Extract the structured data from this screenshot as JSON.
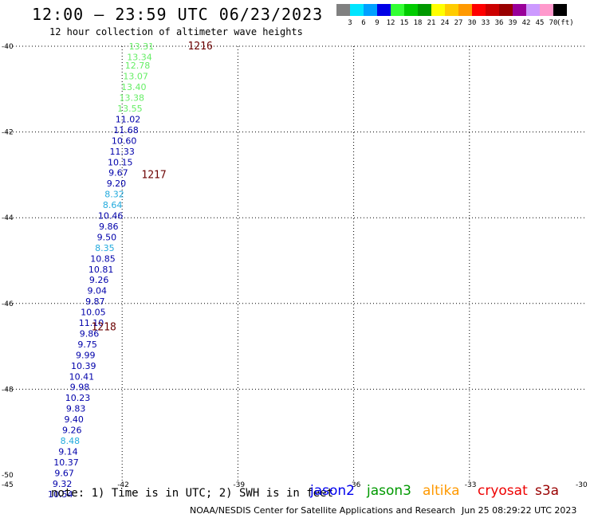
{
  "header": {
    "title": "12:00 – 23:59 UTC 06/23/2023",
    "subtitle": "12 hour collection of altimeter wave heights"
  },
  "color_scale": {
    "labels": [
      "3",
      "6",
      "9",
      "12",
      "15",
      "18",
      "21",
      "24",
      "27",
      "30",
      "33",
      "36",
      "39",
      "42",
      "45",
      "70"
    ],
    "unit": "(ft)",
    "colors": [
      "#808080",
      "#00e5ff",
      "#00a0ff",
      "#0000e6",
      "#33ff33",
      "#00cc00",
      "#009900",
      "#ffff00",
      "#ffcc00",
      "#ff9900",
      "#ff0000",
      "#cc0000",
      "#990000",
      "#990099",
      "#cc99ff",
      "#ff99cc",
      "#000000"
    ]
  },
  "map": {
    "lat_labels": [
      "-40",
      "-42",
      "-44",
      "-46",
      "-48",
      "-50"
    ],
    "lon_labels": [
      "-45",
      "-42",
      "-39",
      "-36",
      "-33",
      "-30"
    ]
  },
  "chart_data": {
    "type": "scatter",
    "x_range": [
      -45,
      -30
    ],
    "y_range": [
      -50,
      -40
    ],
    "passes": [
      {
        "label": "1216",
        "lon": -40.3,
        "lat": -40.0
      },
      {
        "label": "1217",
        "lon": -41.5,
        "lat": -43.0
      },
      {
        "label": "1218",
        "lon": -42.8,
        "lat": -46.55
      }
    ],
    "points": [
      {
        "lon": -41.5,
        "lat": -40.0,
        "v": "13.31",
        "c": "#66ee66"
      },
      {
        "lon": -41.55,
        "lat": -40.25,
        "v": "13.34",
        "c": "#66ee66"
      },
      {
        "lon": -41.6,
        "lat": -40.45,
        "v": "12.78",
        "c": "#66ee66"
      },
      {
        "lon": -41.65,
        "lat": -40.7,
        "v": "13.07",
        "c": "#66ee66"
      },
      {
        "lon": -41.7,
        "lat": -40.95,
        "v": "13.40",
        "c": "#66ee66"
      },
      {
        "lon": -41.75,
        "lat": -41.2,
        "v": "13.38",
        "c": "#66ee66"
      },
      {
        "lon": -41.8,
        "lat": -41.45,
        "v": "13.55",
        "c": "#66ee66"
      },
      {
        "lon": -41.85,
        "lat": -41.7,
        "v": "11.02",
        "c": "#0000aa"
      },
      {
        "lon": -41.9,
        "lat": -41.95,
        "v": "11.68",
        "c": "#0000aa"
      },
      {
        "lon": -41.95,
        "lat": -42.2,
        "v": "10.60",
        "c": "#0000aa"
      },
      {
        "lon": -42.0,
        "lat": -42.45,
        "v": "11.33",
        "c": "#0000aa"
      },
      {
        "lon": -42.05,
        "lat": -42.7,
        "v": "10.15",
        "c": "#0000aa"
      },
      {
        "lon": -42.1,
        "lat": -42.95,
        "v": "9.67",
        "c": "#0000aa"
      },
      {
        "lon": -42.15,
        "lat": -43.2,
        "v": "9.20",
        "c": "#0000aa"
      },
      {
        "lon": -42.2,
        "lat": -43.45,
        "v": "8.32",
        "c": "#22aadd"
      },
      {
        "lon": -42.25,
        "lat": -43.7,
        "v": "8.64",
        "c": "#22aadd"
      },
      {
        "lon": -42.3,
        "lat": -43.95,
        "v": "10.46",
        "c": "#0000aa"
      },
      {
        "lon": -42.35,
        "lat": -44.2,
        "v": "9.86",
        "c": "#0000aa"
      },
      {
        "lon": -42.4,
        "lat": -44.45,
        "v": "9.50",
        "c": "#0000aa"
      },
      {
        "lon": -42.45,
        "lat": -44.7,
        "v": "8.35",
        "c": "#22aadd"
      },
      {
        "lon": -42.5,
        "lat": -44.95,
        "v": "10.85",
        "c": "#0000aa"
      },
      {
        "lon": -42.55,
        "lat": -45.2,
        "v": "10.81",
        "c": "#0000aa"
      },
      {
        "lon": -42.6,
        "lat": -45.45,
        "v": "9.26",
        "c": "#0000aa"
      },
      {
        "lon": -42.65,
        "lat": -45.7,
        "v": "9.04",
        "c": "#0000aa"
      },
      {
        "lon": -42.7,
        "lat": -45.95,
        "v": "9.87",
        "c": "#0000aa"
      },
      {
        "lon": -42.75,
        "lat": -46.2,
        "v": "10.05",
        "c": "#0000aa"
      },
      {
        "lon": -42.8,
        "lat": -46.45,
        "v": "11.10",
        "c": "#0000aa"
      },
      {
        "lon": -42.85,
        "lat": -46.7,
        "v": "9.86",
        "c": "#0000aa"
      },
      {
        "lon": -42.9,
        "lat": -46.95,
        "v": "9.75",
        "c": "#0000aa"
      },
      {
        "lon": -42.95,
        "lat": -47.2,
        "v": "9.99",
        "c": "#0000aa"
      },
      {
        "lon": -43.0,
        "lat": -47.45,
        "v": "10.39",
        "c": "#0000aa"
      },
      {
        "lon": -43.05,
        "lat": -47.7,
        "v": "10.41",
        "c": "#0000aa"
      },
      {
        "lon": -43.1,
        "lat": -47.95,
        "v": "9.98",
        "c": "#0000aa"
      },
      {
        "lon": -43.15,
        "lat": -48.2,
        "v": "10.23",
        "c": "#0000aa"
      },
      {
        "lon": -43.2,
        "lat": -48.45,
        "v": "9.83",
        "c": "#0000aa"
      },
      {
        "lon": -43.25,
        "lat": -48.7,
        "v": "9.40",
        "c": "#0000aa"
      },
      {
        "lon": -43.3,
        "lat": -48.95,
        "v": "9.26",
        "c": "#0000aa"
      },
      {
        "lon": -43.35,
        "lat": -49.2,
        "v": "8.48",
        "c": "#22aadd"
      },
      {
        "lon": -43.4,
        "lat": -49.45,
        "v": "9.14",
        "c": "#0000aa"
      },
      {
        "lon": -43.45,
        "lat": -49.7,
        "v": "10.37",
        "c": "#0000aa"
      },
      {
        "lon": -43.5,
        "lat": -49.95,
        "v": "9.67",
        "c": "#0000aa"
      },
      {
        "lon": -43.55,
        "lat": -50.2,
        "v": "9.32",
        "c": "#0000aa"
      },
      {
        "lon": -43.6,
        "lat": -50.45,
        "v": "10.54",
        "c": "#0000aa"
      }
    ]
  },
  "footer": {
    "note": "note: 1) Time is in UTC; 2) SWH is in feet",
    "satellites": [
      {
        "name": "jason2",
        "color": "#0000ee"
      },
      {
        "name": "jason3",
        "color": "#009900"
      },
      {
        "name": "altika",
        "color": "#ff9900"
      },
      {
        "name": "cryosat",
        "color": "#ee0000"
      },
      {
        "name": "s3a",
        "color": "#990000"
      }
    ],
    "credit": "NOAA/NESDIS Center for Satellite Applications and Research",
    "timestamp": "Jun 25 08:29:22 UTC 2023"
  }
}
